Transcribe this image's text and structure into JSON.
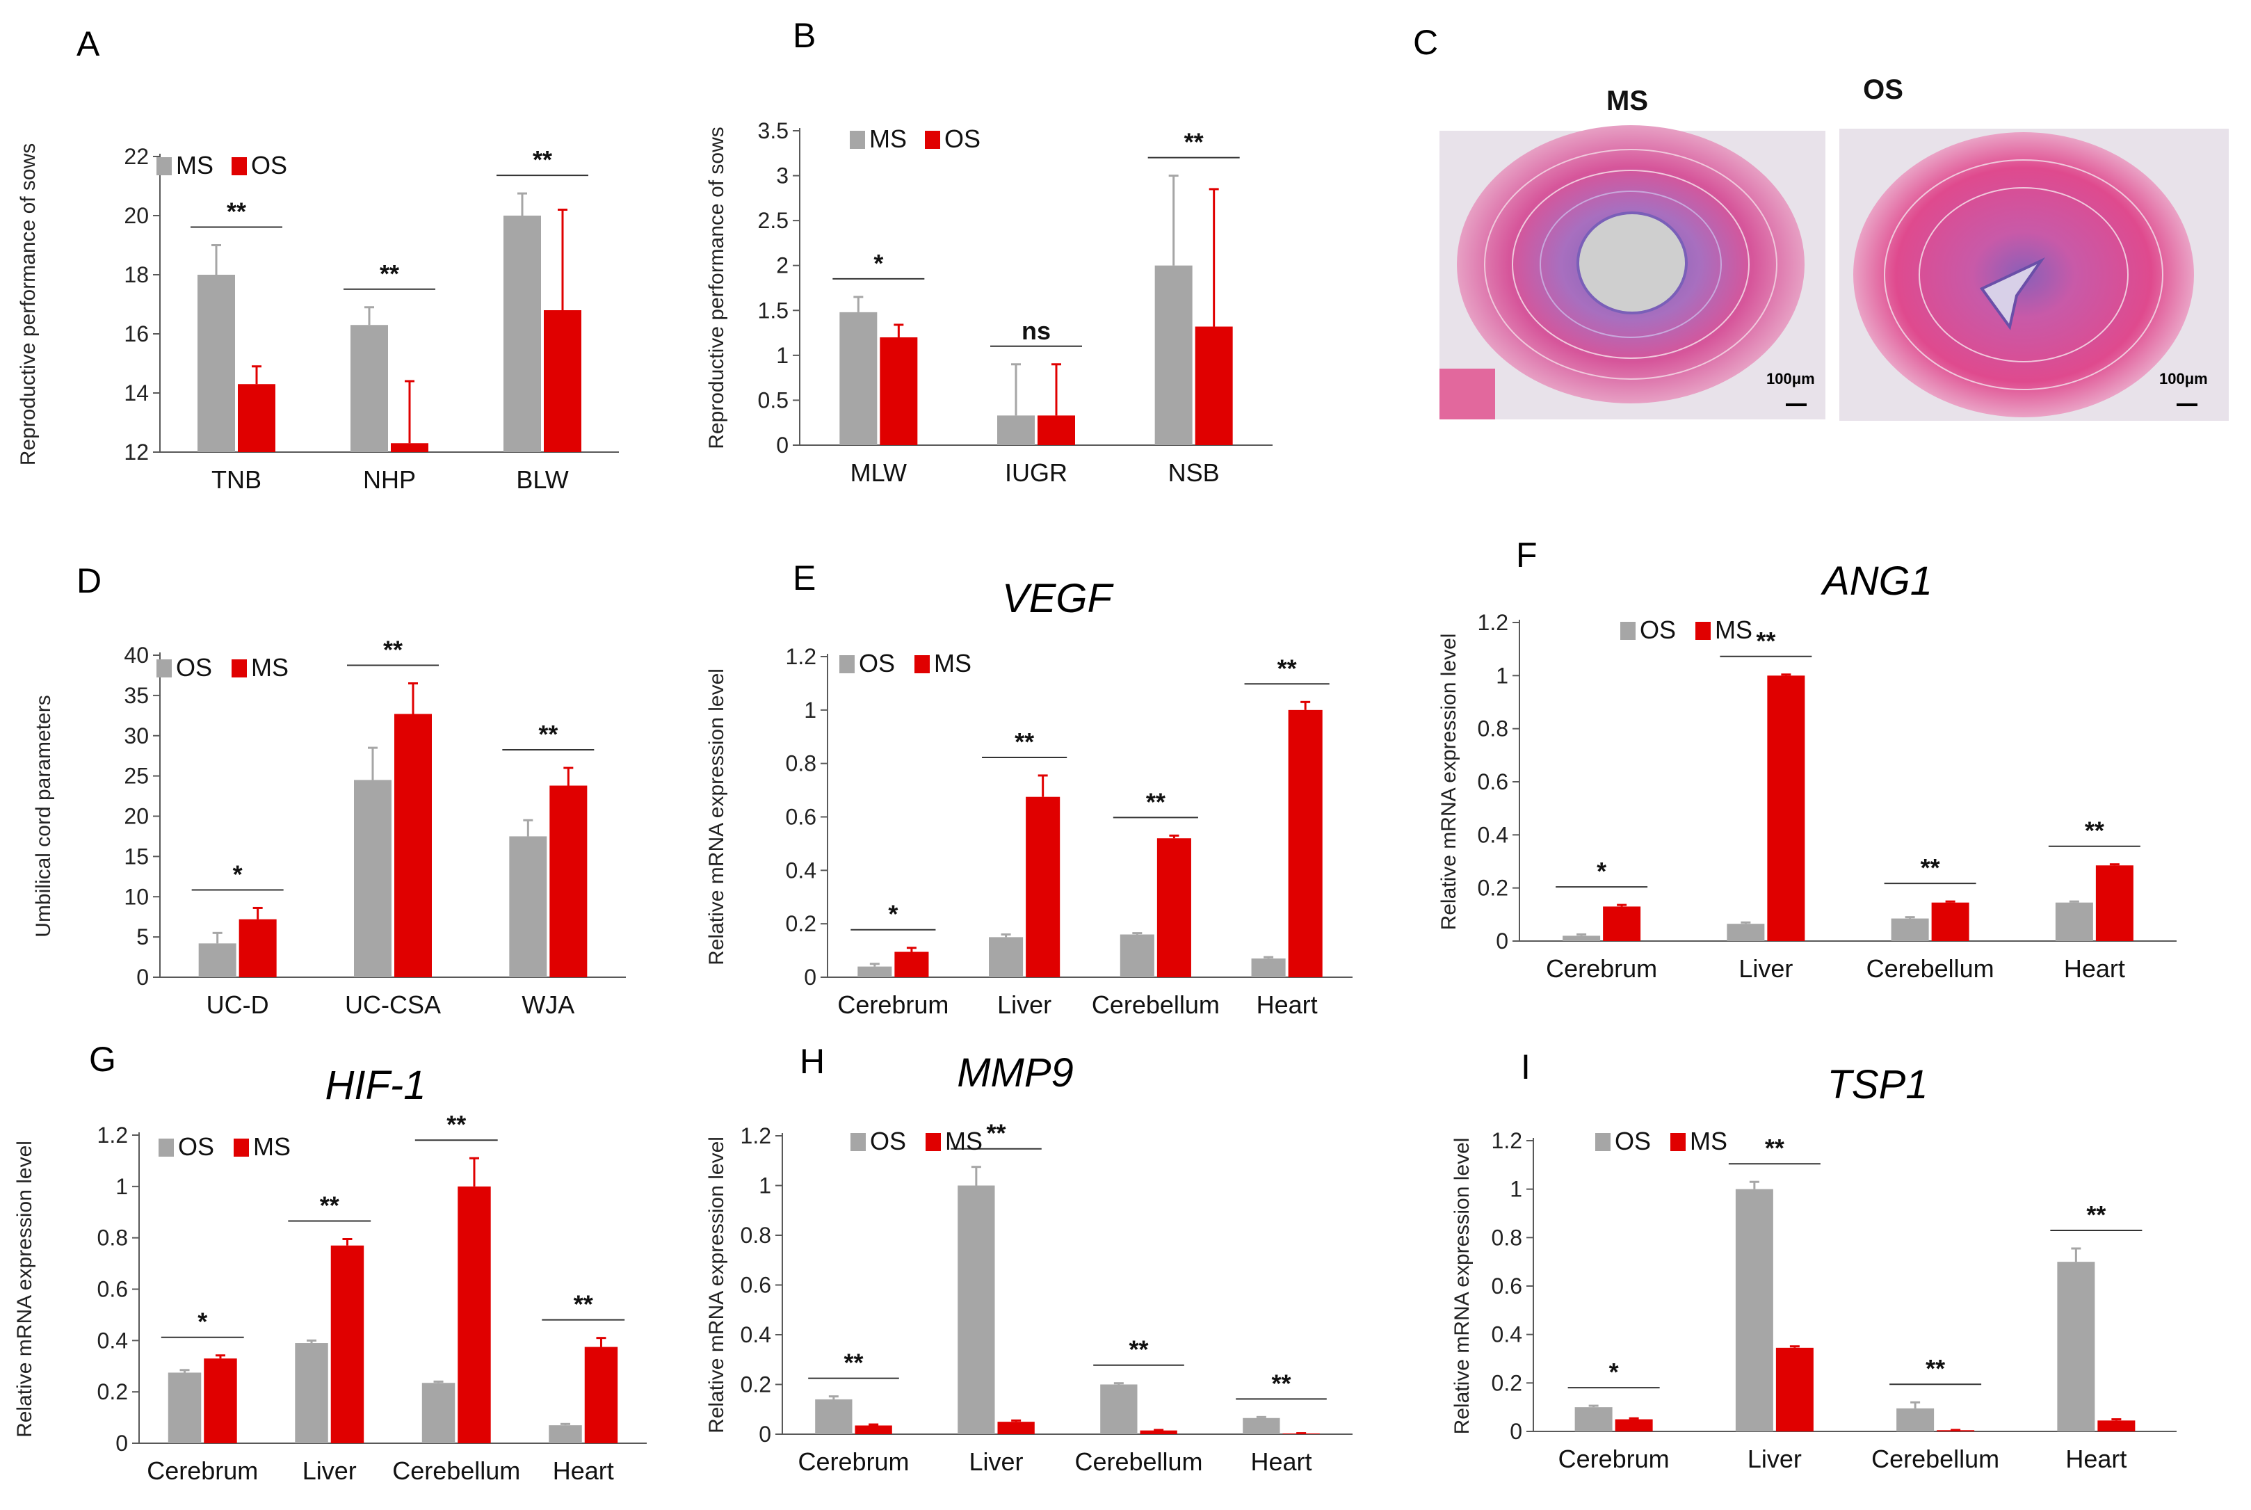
{
  "colors": {
    "gray": "#A6A6A6",
    "red": "#E00000",
    "axis": "#595959"
  },
  "histology": {
    "label": "C",
    "images": [
      {
        "title": "MS",
        "scale": "100μm"
      },
      {
        "title": "OS",
        "scale": "100μm"
      }
    ]
  },
  "chart_data": [
    {
      "label": "A",
      "type": "bar",
      "title": "",
      "ylabel": "Reproductive performance of sows",
      "ylim": [
        12,
        22
      ],
      "yticks": [
        12,
        14,
        16,
        18,
        20,
        22
      ],
      "ytick_labels": [
        "12",
        "14",
        "16",
        "18",
        "20",
        "22"
      ],
      "categories": [
        "TNB",
        "NHP",
        "BLW"
      ],
      "series": [
        {
          "name": "MS",
          "color": "gray",
          "values": [
            18.0,
            16.3,
            20.0
          ],
          "errors": [
            1.0,
            0.6,
            0.75
          ]
        },
        {
          "name": "OS",
          "color": "red",
          "values": [
            14.3,
            12.3,
            16.8
          ],
          "errors": [
            0.6,
            2.1,
            3.4
          ]
        }
      ],
      "significance": [
        "**",
        "**",
        "**"
      ]
    },
    {
      "label": "B",
      "type": "bar",
      "title": "",
      "ylabel": "Reproductive performance of sows",
      "ylim": [
        0,
        3.5
      ],
      "yticks": [
        0,
        0.5,
        1,
        1.5,
        2,
        2.5,
        3,
        3.5
      ],
      "ytick_labels": [
        "0",
        "0.5",
        "1",
        "1.5",
        "2",
        "2.5",
        "3",
        "3.5"
      ],
      "categories": [
        "MLW",
        "IUGR",
        "NSB"
      ],
      "series": [
        {
          "name": "MS",
          "color": "gray",
          "values": [
            1.48,
            0.33,
            2.0
          ],
          "errors": [
            0.17,
            0.57,
            1.0
          ]
        },
        {
          "name": "OS",
          "color": "red",
          "values": [
            1.2,
            0.33,
            1.32
          ],
          "errors": [
            0.14,
            0.57,
            1.53
          ]
        }
      ],
      "significance": [
        "*",
        "ns",
        "**"
      ]
    },
    {
      "label": "D",
      "type": "bar",
      "title": "",
      "ylabel": "Umbilical cord parameters",
      "ylim": [
        0,
        40
      ],
      "yticks": [
        0,
        5,
        10,
        15,
        20,
        25,
        30,
        35,
        40
      ],
      "ytick_labels": [
        "0",
        "5",
        "10",
        "15",
        "20",
        "25",
        "30",
        "35",
        "40"
      ],
      "categories": [
        "UC-D",
        "UC-CSA",
        "WJA"
      ],
      "series": [
        {
          "name": "OS",
          "color": "gray",
          "values": [
            4.2,
            24.5,
            17.5
          ],
          "errors": [
            1.3,
            4.0,
            2.0
          ]
        },
        {
          "name": "MS",
          "color": "red",
          "values": [
            7.2,
            32.7,
            23.8
          ],
          "errors": [
            1.4,
            3.8,
            2.2
          ]
        }
      ],
      "significance": [
        "*",
        "**",
        "**"
      ]
    },
    {
      "label": "E",
      "type": "bar",
      "title": "VEGF",
      "ylabel": "Relative mRNA expression level",
      "ylim": [
        0,
        1.2
      ],
      "yticks": [
        0,
        0.2,
        0.4,
        0.6,
        0.8,
        1,
        1.2
      ],
      "ytick_labels": [
        "0",
        "0.2",
        "0.4",
        "0.6",
        "0.8",
        "1",
        "1.2"
      ],
      "categories": [
        "Cerebrum",
        "Liver",
        "Cerebellum",
        "Heart"
      ],
      "series": [
        {
          "name": "OS",
          "color": "gray",
          "values": [
            0.04,
            0.15,
            0.16,
            0.07
          ],
          "errors": [
            0.01,
            0.01,
            0.005,
            0.005
          ]
        },
        {
          "name": "MS",
          "color": "red",
          "values": [
            0.095,
            0.675,
            0.52,
            1.0
          ],
          "errors": [
            0.015,
            0.08,
            0.01,
            0.03
          ]
        }
      ],
      "significance": [
        "*",
        "**",
        "**",
        "**"
      ]
    },
    {
      "label": "F",
      "type": "bar",
      "title": "ANG1",
      "ylabel": "Relative mRNA expression level",
      "ylim": [
        0,
        1.2
      ],
      "yticks": [
        0,
        0.2,
        0.4,
        0.6,
        0.8,
        1,
        1.2
      ],
      "ytick_labels": [
        "0",
        "0.2",
        "0.4",
        "0.6",
        "0.8",
        "1",
        "1.2"
      ],
      "categories": [
        "Cerebrum",
        "Liver",
        "Cerebellum",
        "Heart"
      ],
      "series": [
        {
          "name": "OS",
          "color": "gray",
          "values": [
            0.02,
            0.065,
            0.085,
            0.145
          ],
          "errors": [
            0.005,
            0.005,
            0.005,
            0.004
          ]
        },
        {
          "name": "MS",
          "color": "red",
          "values": [
            0.13,
            1.0,
            0.145,
            0.285
          ],
          "errors": [
            0.006,
            0.004,
            0.004,
            0.004
          ]
        }
      ],
      "significance": [
        "*",
        "**",
        "**",
        "**"
      ]
    },
    {
      "label": "G",
      "type": "bar",
      "title": "HIF-1",
      "ylabel": "Relative mRNA expression level",
      "ylim": [
        0,
        1.2
      ],
      "yticks": [
        0,
        0.2,
        0.4,
        0.6,
        0.8,
        1,
        1.2
      ],
      "ytick_labels": [
        "0",
        "0.2",
        "0.4",
        "0.6",
        "0.8",
        "1",
        "1.2"
      ],
      "categories": [
        "Cerebrum",
        "Liver",
        "Cerebellum",
        "Heart"
      ],
      "series": [
        {
          "name": "OS",
          "color": "gray",
          "values": [
            0.275,
            0.39,
            0.235,
            0.07
          ],
          "errors": [
            0.01,
            0.01,
            0.005,
            0.005
          ]
        },
        {
          "name": "MS",
          "color": "red",
          "values": [
            0.33,
            0.77,
            1.0,
            0.375
          ],
          "errors": [
            0.012,
            0.025,
            0.11,
            0.035
          ]
        }
      ],
      "significance": [
        "*",
        "**",
        "**",
        "**"
      ]
    },
    {
      "label": "H",
      "type": "bar",
      "title": "MMP9",
      "ylabel": "Relative mRNA expression level",
      "ylim": [
        0,
        1.2
      ],
      "yticks": [
        0,
        0.2,
        0.4,
        0.6,
        0.8,
        1,
        1.2
      ],
      "ytick_labels": [
        "0",
        "0.2",
        "0.4",
        "0.6",
        "0.8",
        "1",
        "1.2"
      ],
      "categories": [
        "Cerebrum",
        "Liver",
        "Cerebellum",
        "Heart"
      ],
      "series": [
        {
          "name": "OS",
          "color": "gray",
          "values": [
            0.14,
            1.0,
            0.2,
            0.065
          ],
          "errors": [
            0.012,
            0.075,
            0.005,
            0.004
          ]
        },
        {
          "name": "MS",
          "color": "red",
          "values": [
            0.035,
            0.05,
            0.015,
            0.003
          ],
          "errors": [
            0.004,
            0.005,
            0.002,
            0.001
          ]
        }
      ],
      "significance": [
        "**",
        "**",
        "**",
        "**"
      ]
    },
    {
      "label": "I",
      "type": "bar",
      "title": "TSP1",
      "ylabel": "Relative mRNA expression level",
      "ylim": [
        0,
        1.2
      ],
      "yticks": [
        0,
        0.2,
        0.4,
        0.6,
        0.8,
        1,
        1.2
      ],
      "ytick_labels": [
        "0",
        "0.2",
        "0.4",
        "0.6",
        "0.8",
        "1",
        "1.2"
      ],
      "categories": [
        "Cerebrum",
        "Liver",
        "Cerebellum",
        "Heart"
      ],
      "series": [
        {
          "name": "OS",
          "color": "gray",
          "values": [
            0.1,
            1.0,
            0.095,
            0.7
          ],
          "errors": [
            0.006,
            0.03,
            0.025,
            0.055
          ]
        },
        {
          "name": "MS",
          "color": "red",
          "values": [
            0.05,
            0.345,
            0.005,
            0.045
          ],
          "errors": [
            0.004,
            0.006,
            0.001,
            0.005
          ]
        }
      ],
      "significance": [
        "*",
        "**",
        "**",
        "**"
      ]
    }
  ]
}
